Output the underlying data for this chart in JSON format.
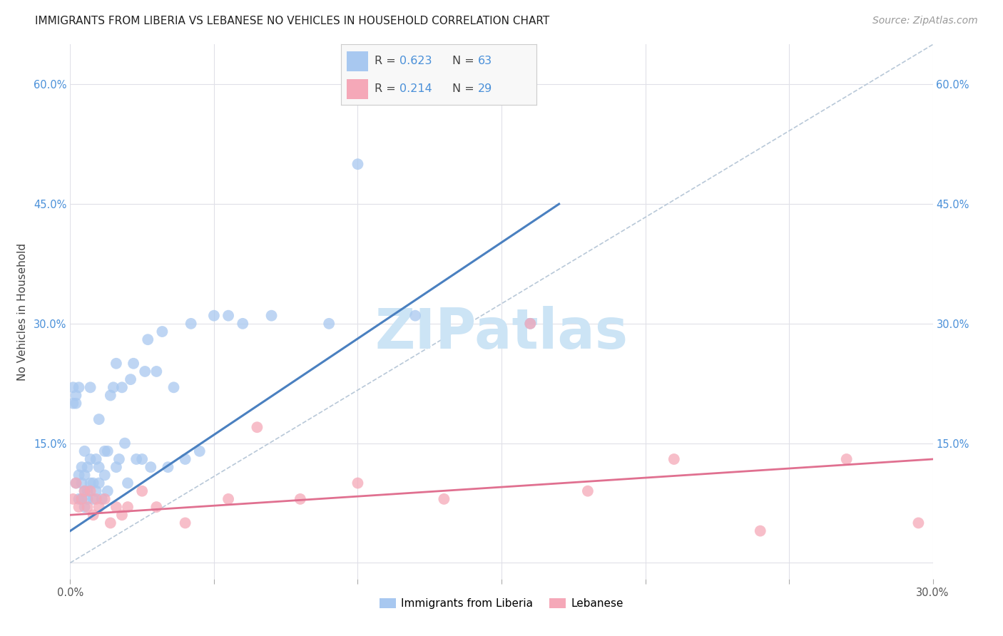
{
  "title": "IMMIGRANTS FROM LIBERIA VS LEBANESE NO VEHICLES IN HOUSEHOLD CORRELATION CHART",
  "source": "Source: ZipAtlas.com",
  "ylabel": "No Vehicles in Household",
  "xlim": [
    0.0,
    0.3
  ],
  "ylim": [
    -0.02,
    0.65
  ],
  "grid_color": "#e0e0e8",
  "background_color": "#ffffff",
  "blue_color": "#a8c8f0",
  "pink_color": "#f5a8b8",
  "blue_line_color": "#4a80c0",
  "pink_line_color": "#e07090",
  "dashed_line_color": "#b8c8d8",
  "watermark_color": "#cce4f5",
  "R_blue": 0.623,
  "N_blue": 63,
  "R_pink": 0.214,
  "N_pink": 29,
  "watermark": "ZIPatlas",
  "legend_label_blue": "Immigrants from Liberia",
  "legend_label_pink": "Lebanese",
  "blue_x": [
    0.001,
    0.001,
    0.002,
    0.002,
    0.002,
    0.003,
    0.003,
    0.003,
    0.004,
    0.004,
    0.004,
    0.005,
    0.005,
    0.005,
    0.005,
    0.006,
    0.006,
    0.006,
    0.007,
    0.007,
    0.007,
    0.008,
    0.008,
    0.009,
    0.009,
    0.01,
    0.01,
    0.01,
    0.011,
    0.012,
    0.012,
    0.013,
    0.013,
    0.014,
    0.015,
    0.016,
    0.016,
    0.017,
    0.018,
    0.019,
    0.02,
    0.021,
    0.022,
    0.023,
    0.025,
    0.026,
    0.027,
    0.028,
    0.03,
    0.032,
    0.034,
    0.036,
    0.04,
    0.042,
    0.045,
    0.05,
    0.055,
    0.06,
    0.07,
    0.09,
    0.1,
    0.12,
    0.16
  ],
  "blue_y": [
    0.22,
    0.2,
    0.1,
    0.2,
    0.21,
    0.08,
    0.11,
    0.22,
    0.08,
    0.1,
    0.12,
    0.07,
    0.09,
    0.11,
    0.14,
    0.08,
    0.09,
    0.12,
    0.1,
    0.13,
    0.22,
    0.08,
    0.1,
    0.09,
    0.13,
    0.1,
    0.12,
    0.18,
    0.08,
    0.14,
    0.11,
    0.09,
    0.14,
    0.21,
    0.22,
    0.12,
    0.25,
    0.13,
    0.22,
    0.15,
    0.1,
    0.23,
    0.25,
    0.13,
    0.13,
    0.24,
    0.28,
    0.12,
    0.24,
    0.29,
    0.12,
    0.22,
    0.13,
    0.3,
    0.14,
    0.31,
    0.31,
    0.3,
    0.31,
    0.3,
    0.5,
    0.31,
    0.3
  ],
  "pink_x": [
    0.001,
    0.002,
    0.003,
    0.004,
    0.005,
    0.006,
    0.007,
    0.008,
    0.009,
    0.01,
    0.012,
    0.014,
    0.016,
    0.018,
    0.02,
    0.025,
    0.03,
    0.04,
    0.055,
    0.065,
    0.08,
    0.1,
    0.13,
    0.16,
    0.18,
    0.21,
    0.24,
    0.27,
    0.295
  ],
  "pink_y": [
    0.08,
    0.1,
    0.07,
    0.08,
    0.09,
    0.07,
    0.09,
    0.06,
    0.08,
    0.07,
    0.08,
    0.05,
    0.07,
    0.06,
    0.07,
    0.09,
    0.07,
    0.05,
    0.08,
    0.17,
    0.08,
    0.1,
    0.08,
    0.3,
    0.09,
    0.13,
    0.04,
    0.13,
    0.05
  ],
  "blue_line_x": [
    0.0,
    0.17
  ],
  "blue_line_y": [
    0.04,
    0.45
  ],
  "pink_line_x": [
    0.0,
    0.3
  ],
  "pink_line_y": [
    0.06,
    0.13
  ]
}
